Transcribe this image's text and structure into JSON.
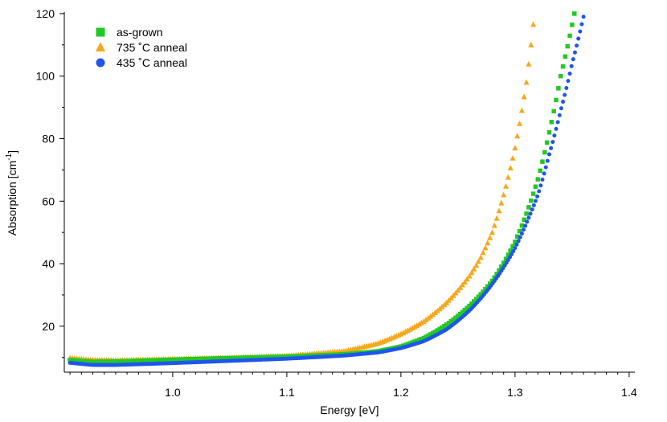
{
  "chart_data": {
    "type": "scatter",
    "title": "",
    "xlabel": "Energy [eV]",
    "ylabel": "Absorption [cm",
    "ylabel_superscript": "-1",
    "ylabel_suffix": "]",
    "xlim": [
      0.905,
      1.405
    ],
    "ylim": [
      5.3,
      120.5
    ],
    "x_ticks": [
      1.0,
      1.1,
      1.2,
      1.3,
      1.4
    ],
    "x_tick_labels": [
      "1.0",
      "1.1",
      "1.2",
      "1.3",
      "1.4"
    ],
    "y_ticks": [
      20,
      40,
      60,
      80,
      100,
      120
    ],
    "y_tick_labels": [
      "20",
      "40",
      "60",
      "80",
      "100",
      "120"
    ],
    "grid": false,
    "legend_position": "top-left",
    "series": [
      {
        "name": "as-grown",
        "marker": "square",
        "color": "#22c922",
        "x_range": [
          0.91,
          1.352
        ],
        "points": [
          [
            0.91,
            9.2
          ],
          [
            0.93,
            8.6
          ],
          [
            0.95,
            8.7
          ],
          [
            1.0,
            9.3
          ],
          [
            1.05,
            9.8
          ],
          [
            1.1,
            10.3
          ],
          [
            1.15,
            11.0
          ],
          [
            1.18,
            12.0
          ],
          [
            1.2,
            13.5
          ],
          [
            1.22,
            16.2
          ],
          [
            1.24,
            20.5
          ],
          [
            1.26,
            26.5
          ],
          [
            1.28,
            34.5
          ],
          [
            1.3,
            47.0
          ],
          [
            1.31,
            56.0
          ],
          [
            1.32,
            67.0
          ],
          [
            1.33,
            82.0
          ],
          [
            1.34,
            100.0
          ],
          [
            1.352,
            120.0
          ]
        ]
      },
      {
        "name": "735 ˚C anneal",
        "marker": "triangle",
        "color": "#f7a81b",
        "x_range": [
          0.91,
          1.316
        ],
        "points": [
          [
            0.91,
            9.8
          ],
          [
            0.93,
            9.2
          ],
          [
            0.95,
            9.1
          ],
          [
            1.0,
            9.5
          ],
          [
            1.05,
            9.9
          ],
          [
            1.1,
            10.5
          ],
          [
            1.15,
            12.0
          ],
          [
            1.18,
            14.5
          ],
          [
            1.2,
            17.5
          ],
          [
            1.22,
            21.5
          ],
          [
            1.24,
            27.5
          ],
          [
            1.26,
            36.0
          ],
          [
            1.27,
            42.0
          ],
          [
            1.28,
            50.0
          ],
          [
            1.29,
            62.0
          ],
          [
            1.3,
            77.0
          ],
          [
            1.31,
            98.0
          ],
          [
            1.316,
            116.5
          ]
        ]
      },
      {
        "name": "435 ˚C anneal",
        "marker": "circle",
        "color": "#1f55ee",
        "x_range": [
          0.91,
          1.36
        ],
        "points": [
          [
            0.91,
            8.3
          ],
          [
            0.93,
            7.6
          ],
          [
            0.95,
            7.6
          ],
          [
            1.0,
            8.2
          ],
          [
            1.05,
            8.9
          ],
          [
            1.1,
            9.6
          ],
          [
            1.15,
            10.6
          ],
          [
            1.18,
            11.6
          ],
          [
            1.2,
            13.0
          ],
          [
            1.22,
            15.2
          ],
          [
            1.24,
            19.0
          ],
          [
            1.26,
            25.0
          ],
          [
            1.28,
            33.5
          ],
          [
            1.3,
            45.0
          ],
          [
            1.31,
            53.0
          ],
          [
            1.32,
            62.0
          ],
          [
            1.33,
            75.0
          ],
          [
            1.34,
            89.0
          ],
          [
            1.35,
            104.0
          ],
          [
            1.36,
            119.0
          ]
        ]
      }
    ]
  }
}
